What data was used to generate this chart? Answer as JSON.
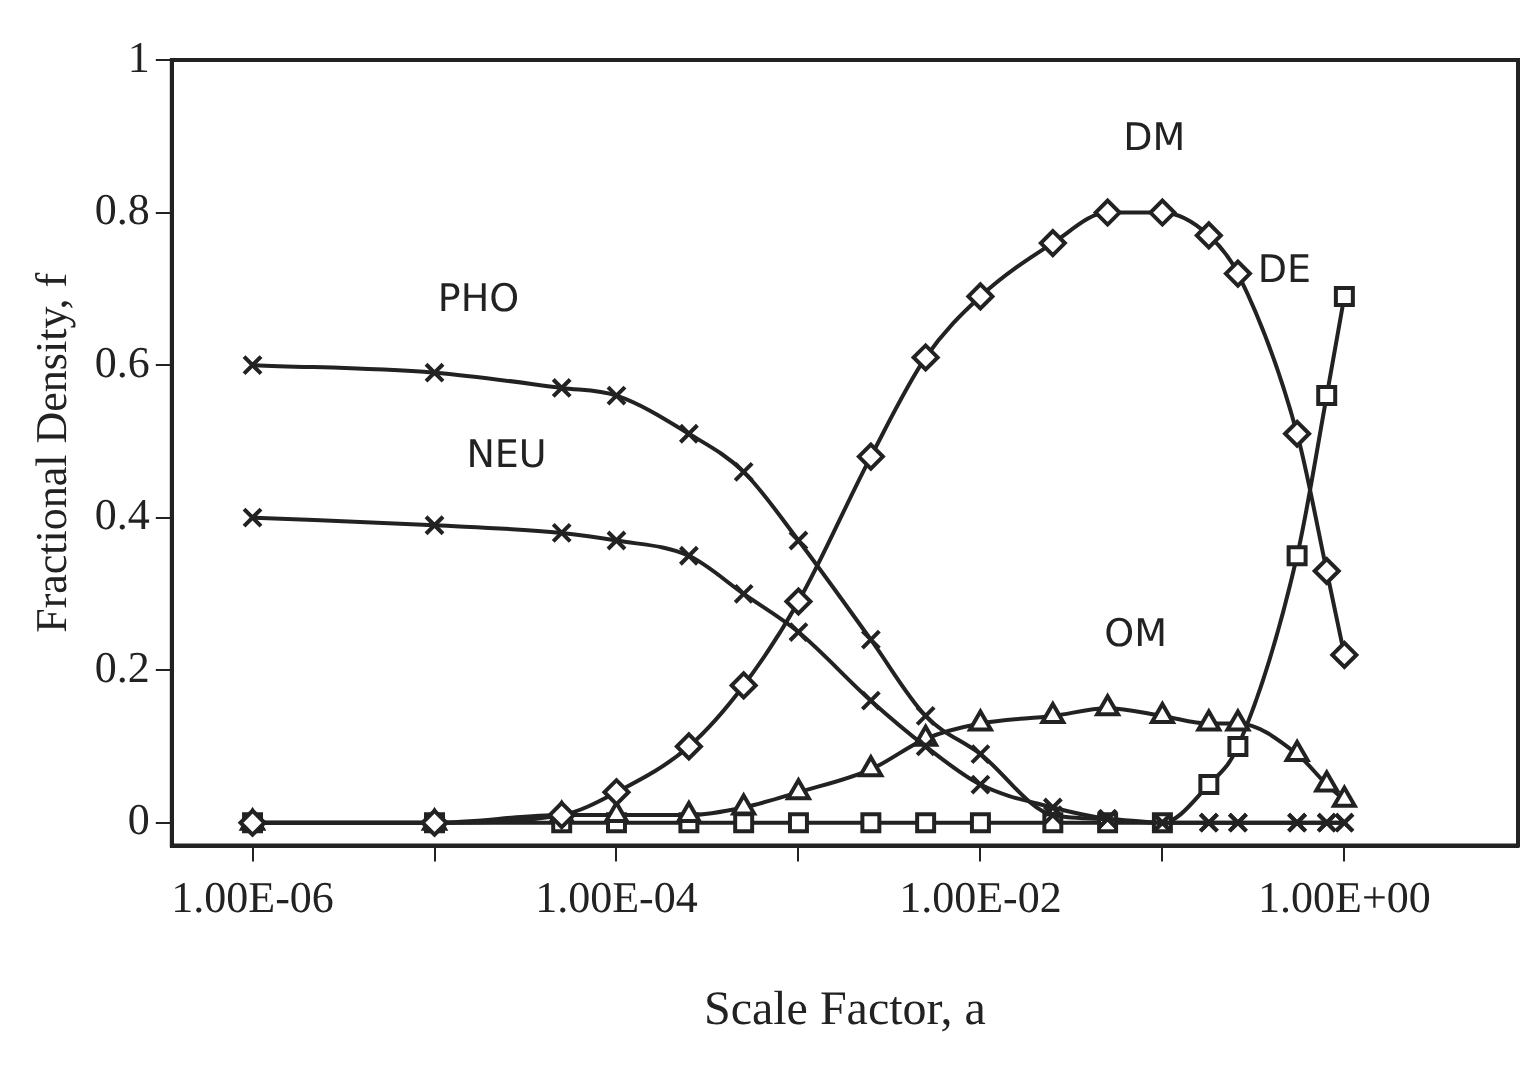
{
  "chart_data": {
    "type": "line",
    "xlabel": "Scale Factor, a",
    "ylabel": "Fractional Density, f",
    "log": "x",
    "x": [
      1e-06,
      1e-05,
      5e-05,
      0.0001,
      0.00025,
      0.0005,
      0.001,
      0.0025,
      0.005,
      0.01,
      0.025,
      0.05,
      0.1,
      0.18,
      0.26,
      0.55,
      0.8,
      1
    ],
    "xlim": [
      3.6e-07,
      9
    ],
    "xticks": [
      {
        "value": 1e-06,
        "label": "1.00E-06"
      },
      {
        "value": 1e-05,
        "label": null
      },
      {
        "value": 0.0001,
        "label": "1.00E-04"
      },
      {
        "value": 0.001,
        "label": null
      },
      {
        "value": 0.01,
        "label": "1.00E-02"
      },
      {
        "value": 0.1,
        "label": null
      },
      {
        "value": 1,
        "label": "1.00E+00"
      }
    ],
    "ylim": [
      -0.03,
      1
    ],
    "yticks": [
      0,
      0.2,
      0.4,
      0.6,
      0.8,
      1
    ],
    "grid": false,
    "legend": false,
    "line_style": "solid",
    "series": [
      {
        "name": "PHO",
        "color": "#222222",
        "marker": "cross",
        "values": [
          0.6,
          0.59,
          0.57,
          0.56,
          0.51,
          0.46,
          0.37,
          0.24,
          0.14,
          0.09,
          0.01,
          0.005,
          0,
          0,
          0,
          0,
          0,
          0
        ]
      },
      {
        "name": "NEU",
        "color": "#222222",
        "marker": "cross",
        "values": [
          0.4,
          0.39,
          0.38,
          0.37,
          0.35,
          0.3,
          0.25,
          0.16,
          0.1,
          0.05,
          0.02,
          0.005,
          0,
          0,
          0,
          0,
          0,
          0
        ]
      },
      {
        "name": "DM",
        "color": "#222222",
        "marker": "diamond",
        "values": [
          0,
          0,
          0.01,
          0.04,
          0.1,
          0.18,
          0.29,
          0.48,
          0.61,
          0.69,
          0.76,
          0.8,
          0.8,
          0.77,
          0.72,
          0.51,
          0.33,
          0.22
        ]
      },
      {
        "name": "OM",
        "color": "#222222",
        "marker": "triangle",
        "values": [
          0,
          0,
          0.01,
          0.01,
          0.01,
          0.02,
          0.04,
          0.07,
          0.11,
          0.13,
          0.14,
          0.15,
          0.14,
          0.13,
          0.13,
          0.09,
          0.05,
          0.03
        ]
      },
      {
        "name": "DE",
        "color": "#222222",
        "marker": "square",
        "values": [
          0,
          0,
          0,
          0,
          0,
          0,
          0,
          0,
          0,
          0,
          0,
          0,
          0,
          0.05,
          0.1,
          0.35,
          0.56,
          0.69
        ]
      }
    ]
  }
}
